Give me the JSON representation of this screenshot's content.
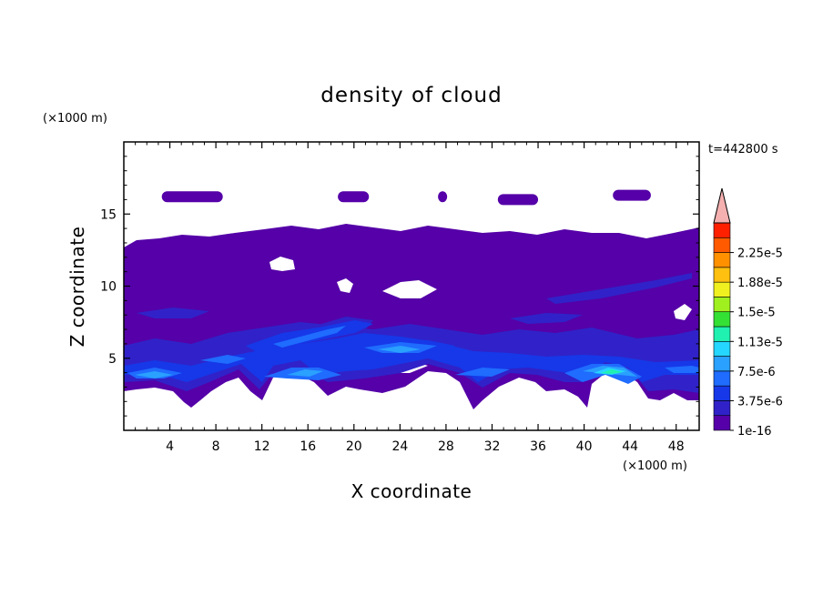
{
  "chart_data": {
    "type": "heatmap",
    "title": "density of cloud",
    "xlabel": "X coordinate",
    "ylabel": "Z coordinate",
    "x_unit": "(×1000 m)",
    "y_unit": "(×1000 m)",
    "time_label": "t=442800 s",
    "xlim": [
      0,
      50
    ],
    "ylim": [
      0,
      20
    ],
    "x_ticks": [
      4,
      8,
      12,
      16,
      20,
      24,
      28,
      32,
      36,
      40,
      44,
      48
    ],
    "y_ticks": [
      5,
      10,
      15
    ],
    "colorbar": {
      "labels": [
        "1e-16",
        "3.75e-6",
        "7.5e-6",
        "1.13e-5",
        "1.5e-5",
        "1.88e-5",
        "2.25e-5"
      ],
      "colors": [
        "#5500a8",
        "#3022c8",
        "#1638e8",
        "#1f6cff",
        "#2aa0ff",
        "#25d6ff",
        "#20f0b0",
        "#35e035",
        "#a0f020",
        "#f0f020",
        "#ffc010",
        "#ff9000",
        "#ff5a00",
        "#ff2000",
        "#f5b0b0"
      ],
      "extend": "max"
    },
    "cloud_layer": {
      "z_bottom": 2.6,
      "z_top": 13.0
    },
    "upper_cloud_patches": [
      {
        "x_start": 3.3,
        "x_end": 8.6,
        "z": 16.2
      },
      {
        "x_start": 18.6,
        "x_end": 21.3,
        "z": 16.2
      },
      {
        "x_start": 27.3,
        "x_end": 28.1,
        "z": 16.2
      },
      {
        "x_start": 32.5,
        "x_end": 36.0,
        "z": 16.0
      },
      {
        "x_start": 42.5,
        "x_end": 45.8,
        "z": 16.3
      }
    ]
  }
}
